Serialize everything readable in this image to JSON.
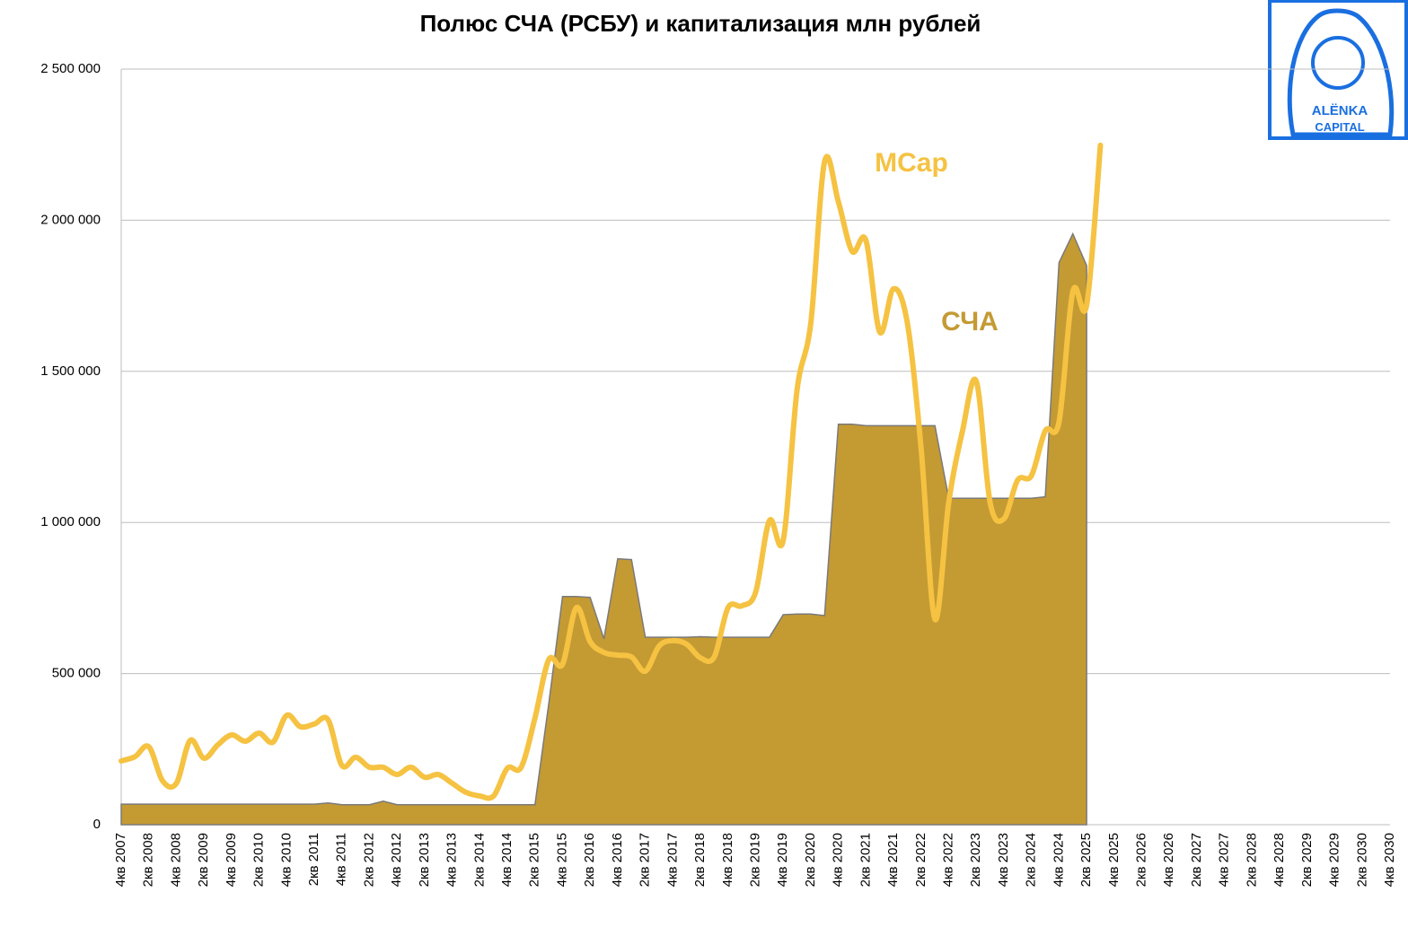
{
  "chart_data": {
    "type": "area_line",
    "title": "Полюс СЧА (РСБУ) и капитализация млн рублей",
    "categories": [
      "4кв 2007",
      null,
      "2кв 2008",
      null,
      "4кв 2008",
      null,
      "2кв 2009",
      null,
      "4кв 2009",
      null,
      "2кв 2010",
      null,
      "4кв 2010",
      null,
      "2кв 2011",
      null,
      "4кв 2011",
      null,
      "2кв 2012",
      null,
      "4кв 2012",
      null,
      "2кв 2013",
      null,
      "4кв 2013",
      null,
      "2кв 2014",
      null,
      "4кв 2014",
      null,
      "2кв 2015",
      null,
      "4кв 2015",
      null,
      "2кв 2016",
      null,
      "4кв 2016",
      null,
      "2кв 2017",
      null,
      "4кв 2017",
      null,
      "2кв 2018",
      null,
      "4кв 2018",
      null,
      "2кв 2019",
      null,
      "4кв 2019",
      null,
      "2кв 2020",
      null,
      "4кв 2020",
      null,
      "2кв 2021",
      null,
      "4кв 2021",
      null,
      "2кв 2022",
      null,
      "4кв 2022",
      null,
      "2кв 2023",
      null,
      "4кв 2023",
      null,
      "2кв 2024",
      null,
      "4кв 2024",
      null,
      "2кв 2025",
      null,
      "4кв 2025",
      null,
      "2кв 2026",
      null,
      "4кв 2026",
      null,
      "2кв 2027",
      null,
      "4кв 2027",
      null,
      "2кв 2028",
      null,
      "4кв 2028",
      null,
      "2кв 2029",
      null,
      "4кв 2029",
      null,
      "2кв 2030",
      null,
      "4кв 2030"
    ],
    "series": [
      {
        "name": "СЧА",
        "kind": "area",
        "color": "#c49a33",
        "values": [
          68000,
          68000,
          68000,
          68000,
          68000,
          68000,
          68000,
          68000,
          68000,
          68000,
          68000,
          68000,
          68000,
          68000,
          68000,
          72000,
          66000,
          66000,
          66000,
          78000,
          66000,
          66000,
          66000,
          66000,
          66000,
          66000,
          66000,
          66000,
          66000,
          66000,
          66000,
          400000,
          755000,
          755000,
          752000,
          615000,
          880000,
          877000,
          620000,
          620000,
          620000,
          620000,
          622000,
          620000,
          620000,
          620000,
          620000,
          620000,
          695000,
          697000,
          697000,
          692000,
          1325000,
          1325000,
          1320000,
          1320000,
          1320000,
          1320000,
          1320000,
          1320000,
          1080000,
          1080000,
          1080000,
          1080000,
          1080000,
          1080000,
          1080000,
          1085000,
          1860000,
          1955000,
          1850000,
          null,
          null,
          null,
          null,
          null,
          null,
          null,
          null,
          null,
          null,
          null,
          null,
          null,
          null,
          null,
          null,
          null,
          null,
          null,
          null,
          null,
          null
        ]
      },
      {
        "name": "MCap",
        "kind": "line",
        "color": "#f5c242",
        "values": [
          211000,
          225000,
          258000,
          145000,
          137000,
          279000,
          220000,
          264000,
          297000,
          276000,
          303000,
          273000,
          362000,
          324000,
          333000,
          347000,
          196000,
          223000,
          190000,
          190000,
          166000,
          190000,
          157000,
          166000,
          137000,
          107000,
          95000,
          95000,
          187000,
          190000,
          353000,
          546000,
          531000,
          718000,
          606000,
          570000,
          561000,
          555000,
          508000,
          591000,
          609000,
          597000,
          552000,
          555000,
          718000,
          724000,
          769000,
          1006000,
          941000,
          1437000,
          1660000,
          2194000,
          2061000,
          1897000,
          1933000,
          1630000,
          1773000,
          1660000,
          1244000,
          680000,
          1066000,
          1303000,
          1467000,
          1066000,
          1012000,
          1140000,
          1155000,
          1303000,
          1333000,
          1764000,
          1719000,
          2248000,
          null,
          null,
          null,
          null,
          null,
          null,
          null,
          null,
          null,
          null,
          null,
          null,
          null,
          null,
          null,
          null,
          null,
          null,
          null,
          null,
          null
        ]
      }
    ],
    "ylim": [
      0,
      2500000
    ],
    "yticks": [
      0,
      {
        "value": 500000,
        "label": "500 000"
      },
      {
        "value": 1000000,
        "label": "1 000 000"
      },
      {
        "value": 1500000,
        "label": "1 500 000"
      },
      {
        "value": 2000000,
        "label": "2 000 000"
      },
      {
        "value": 2500000,
        "label": "2 500 000"
      }
    ],
    "grid": true
  },
  "logo": {
    "line1": "ALËNKA",
    "line2": "CAPITAL"
  }
}
